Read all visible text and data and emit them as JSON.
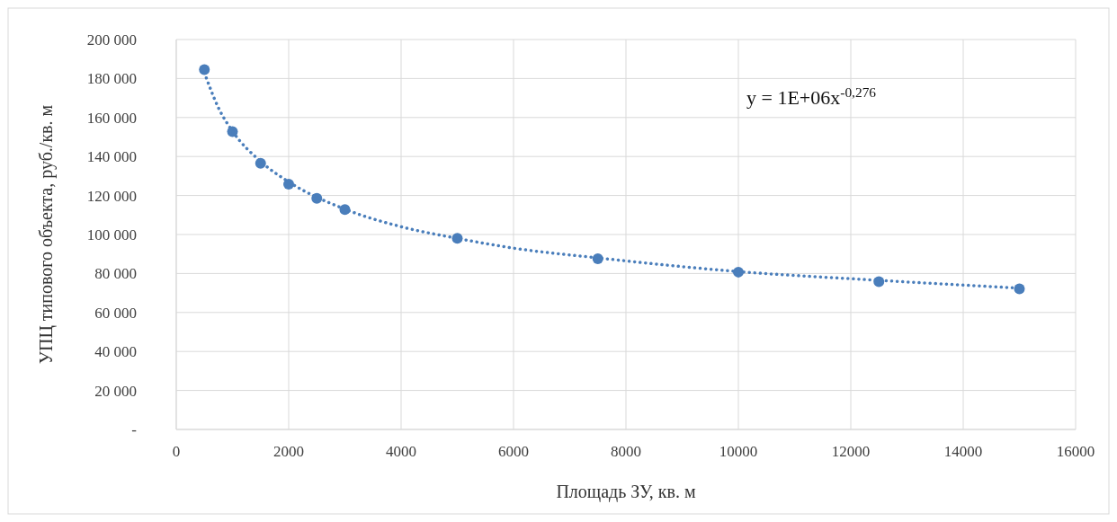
{
  "chart_data": {
    "type": "scatter",
    "xlabel": "Площадь ЗУ, кв. м",
    "ylabel": "УПЦ типового объекта, руб./кв. м",
    "xlim": [
      0,
      16000
    ],
    "xticks": [
      0,
      2000,
      4000,
      6000,
      8000,
      10000,
      12000,
      14000,
      16000
    ],
    "ylim": [
      0,
      200000
    ],
    "yticks": [
      {
        "value": 0,
        "label": "-"
      },
      {
        "value": 20000,
        "label": "20 000"
      },
      {
        "value": 40000,
        "label": "40 000"
      },
      {
        "value": 60000,
        "label": "60 000"
      },
      {
        "value": 80000,
        "label": "80 000"
      },
      {
        "value": 100000,
        "label": "100 000"
      },
      {
        "value": 120000,
        "label": "120 000"
      },
      {
        "value": 140000,
        "label": "140 000"
      },
      {
        "value": 160000,
        "label": "160 000"
      },
      {
        "value": 180000,
        "label": "180 000"
      },
      {
        "value": 200000,
        "label": "200 000"
      }
    ],
    "grid": true,
    "marker": "circle",
    "annotations": [
      "y = 1E+06x$^{-0,276}$"
    ],
    "series": [
      {
        "color": "#4a7ebb",
        "x": [
          500,
          1000,
          1500,
          2000,
          2500,
          3000,
          5000,
          7500,
          10000,
          12500,
          15000
        ],
        "values": [
          184600,
          152800,
          136500,
          125800,
          118500,
          112800,
          98000,
          87600,
          80700,
          75800,
          72100
        ]
      },
      {
        "type": "line",
        "color": "#4a7ebb",
        "line_style": "dotted",
        "marker": "none",
        "x": [
          500,
          750,
          1000,
          1500,
          2000,
          3000,
          4000,
          5000,
          6000,
          7500,
          10000,
          12500,
          15000
        ],
        "values": [
          183000,
          165000,
          153000,
          137500,
          127000,
          113000,
          104000,
          98000,
          93000,
          88000,
          81000,
          76500,
          72500
        ]
      }
    ]
  }
}
